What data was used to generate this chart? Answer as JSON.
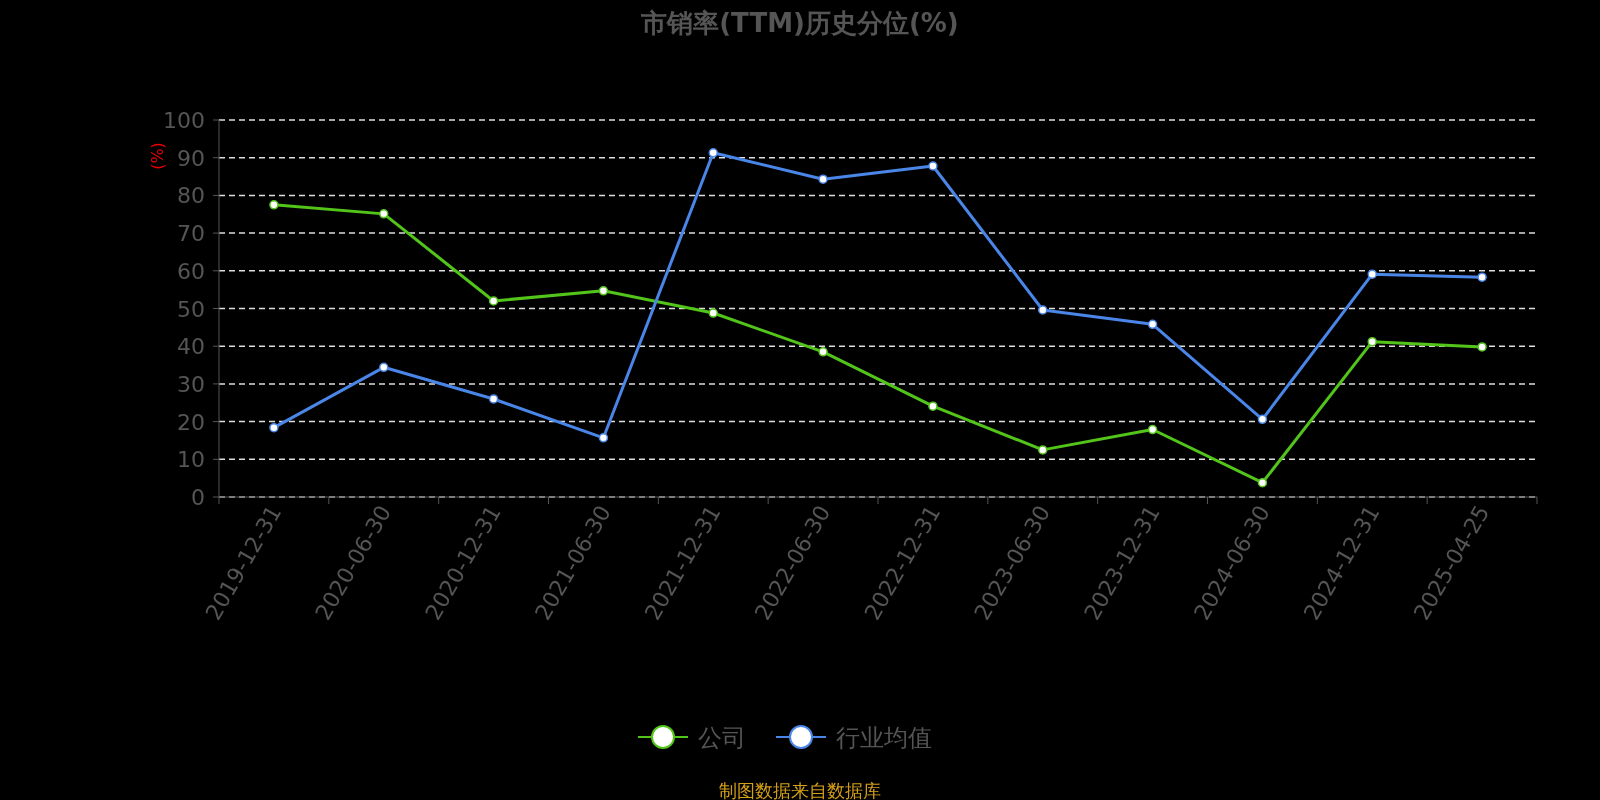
{
  "chart_data": {
    "type": "line",
    "title": "市销率(TTM)历史分位(%)",
    "ylabel": "(%)",
    "categories": [
      "2019-12-31",
      "2020-06-30",
      "2020-12-31",
      "2021-06-30",
      "2021-12-31",
      "2022-06-30",
      "2022-12-31",
      "2023-06-30",
      "2023-12-31",
      "2024-06-30",
      "2024-12-31",
      "2025-04-25"
    ],
    "series": [
      {
        "name": "公司",
        "color": "#52c41a",
        "values": [
          77.5,
          75.1,
          52.0,
          54.7,
          48.8,
          38.5,
          24.1,
          12.5,
          17.9,
          3.8,
          41.2,
          39.8
        ]
      },
      {
        "name": "行业均值",
        "color": "#4a86e8",
        "values": [
          18.4,
          34.4,
          26.0,
          15.7,
          91.3,
          84.3,
          87.8,
          49.6,
          45.8,
          20.6,
          59.1,
          58.3
        ]
      }
    ],
    "ylim": [
      0,
      100
    ],
    "yticks": [
      0,
      10,
      20,
      30,
      40,
      50,
      60,
      70,
      80,
      90,
      100
    ],
    "grid": "y",
    "legend": "bottom",
    "marker": "circle",
    "line_style": "solid",
    "annotations": [
      "制图数据来自数据库"
    ]
  }
}
